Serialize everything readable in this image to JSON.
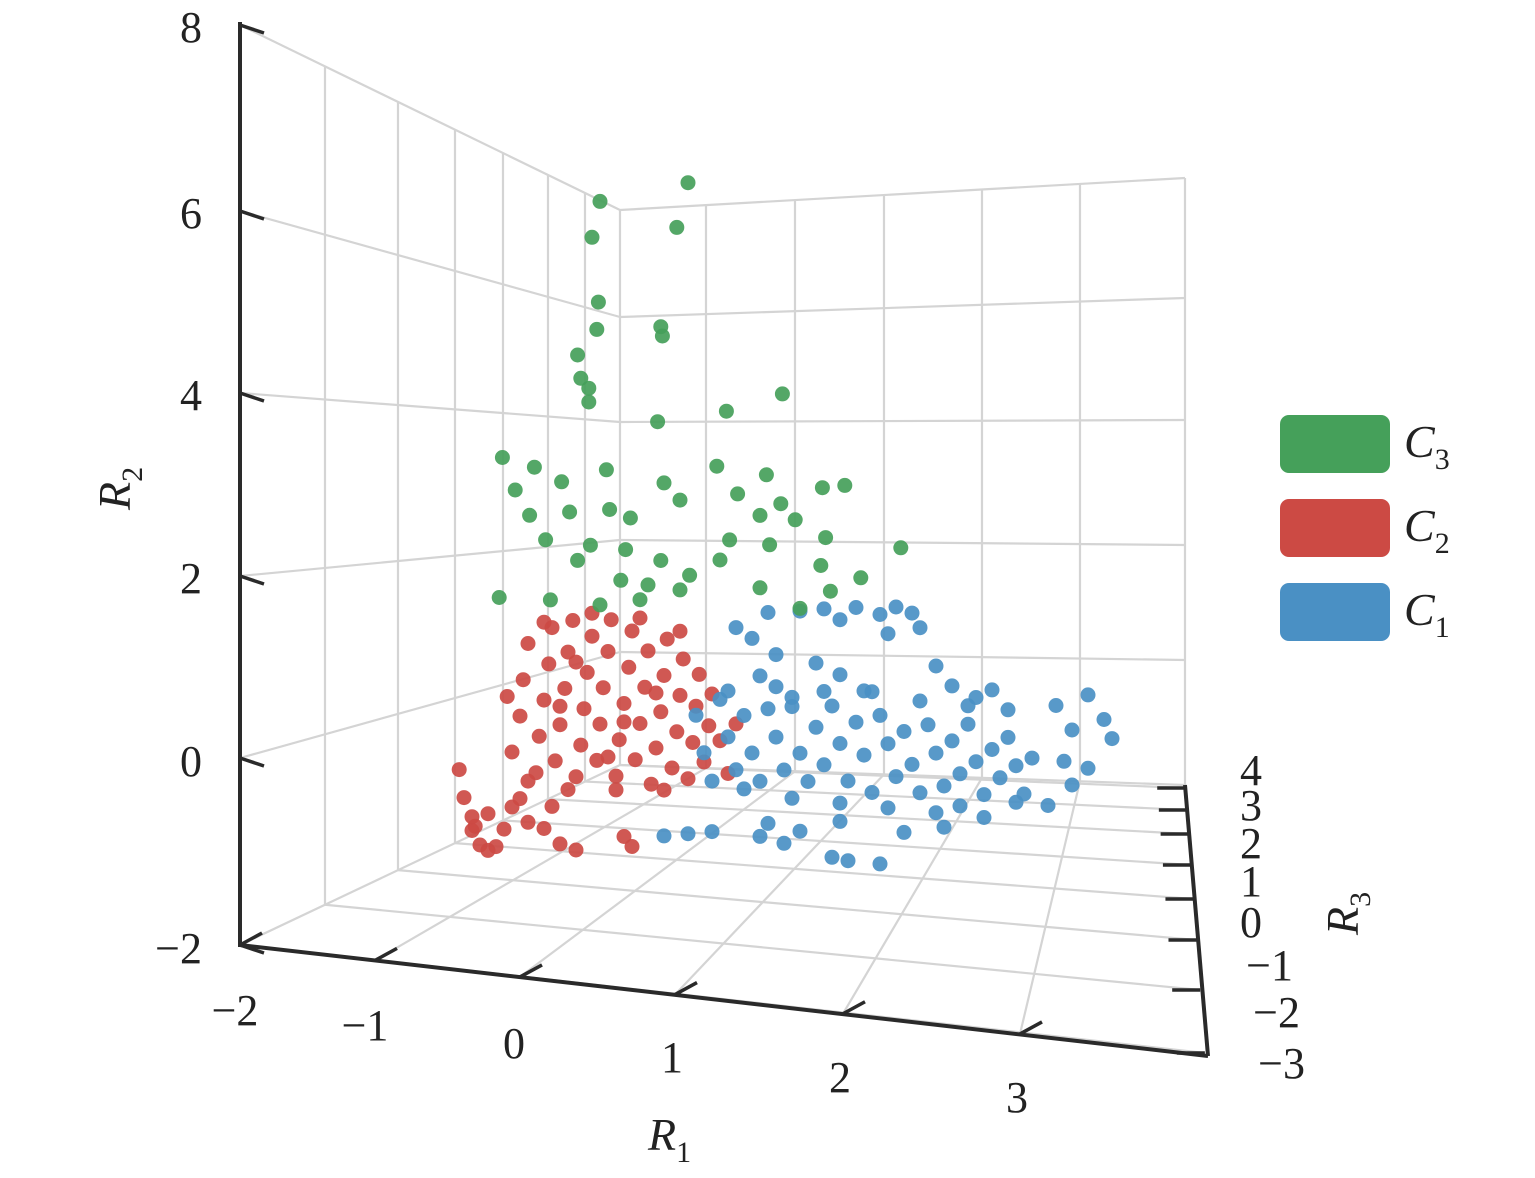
{
  "chart_data": {
    "type": "scatter",
    "projection": "3d",
    "xlabel": {
      "main": "R",
      "sub": "1"
    },
    "ylabel": {
      "main": "R",
      "sub": "2"
    },
    "zlabel": {
      "main": "R",
      "sub": "3"
    },
    "xticks": [
      "−2",
      "−1",
      "0",
      "1",
      "2",
      "3"
    ],
    "yticks": [
      "8",
      "6",
      "4",
      "2",
      "0",
      "−2"
    ],
    "zticks": [
      "4",
      "3",
      "2",
      "1",
      "0",
      "−1",
      "−2",
      "−3"
    ],
    "xlim": [
      -2,
      4
    ],
    "ylim": [
      -2,
      8
    ],
    "zlim": [
      -3,
      4
    ],
    "grid": true,
    "legend_position": "right",
    "point_dims": [
      "R1",
      "R2"
    ],
    "series": [
      {
        "name": "C",
        "sub": "2",
        "color": "#cc4a44",
        "points": [
          [
            -0.05,
            0.5
          ],
          [
            0.0,
            0.9
          ],
          [
            0.02,
            1.3
          ],
          [
            0.05,
            1.7
          ],
          [
            0.1,
            0.3
          ],
          [
            0.12,
            0.7
          ],
          [
            0.15,
            1.1
          ],
          [
            0.18,
            1.5
          ],
          [
            0.2,
            1.9
          ],
          [
            0.22,
            0.45
          ],
          [
            0.25,
            0.85
          ],
          [
            0.28,
            1.25
          ],
          [
            0.3,
            1.65
          ],
          [
            0.33,
            2.0
          ],
          [
            0.35,
            0.3
          ],
          [
            0.38,
            0.65
          ],
          [
            0.4,
            1.05
          ],
          [
            0.42,
            1.45
          ],
          [
            0.45,
            1.85
          ],
          [
            0.48,
            0.5
          ],
          [
            0.5,
            0.9
          ],
          [
            0.52,
            1.3
          ],
          [
            0.55,
            1.7
          ],
          [
            0.57,
            2.05
          ],
          [
            0.6,
            0.35
          ],
          [
            0.62,
            0.75
          ],
          [
            0.65,
            1.15
          ],
          [
            0.68,
            1.55
          ],
          [
            0.7,
            1.95
          ],
          [
            0.72,
            0.55
          ],
          [
            0.75,
            0.95
          ],
          [
            0.78,
            1.35
          ],
          [
            0.8,
            1.75
          ],
          [
            0.82,
            0.3
          ],
          [
            0.85,
            0.7
          ],
          [
            0.88,
            1.1
          ],
          [
            0.9,
            1.5
          ],
          [
            0.92,
            1.9
          ],
          [
            0.95,
            0.5
          ],
          [
            0.98,
            0.9
          ],
          [
            1.0,
            1.3
          ],
          [
            1.02,
            1.7
          ],
          [
            1.05,
            0.4
          ],
          [
            1.08,
            0.8
          ],
          [
            1.1,
            1.2
          ],
          [
            1.12,
            1.55
          ],
          [
            1.15,
            0.6
          ],
          [
            1.18,
            1.0
          ],
          [
            1.2,
            1.35
          ],
          [
            0.05,
            0.2
          ],
          [
            0.3,
            0.15
          ],
          [
            0.6,
            0.2
          ],
          [
            0.9,
            0.25
          ],
          [
            -0.08,
            1.1
          ],
          [
            0.15,
            1.95
          ],
          [
            0.45,
            2.1
          ],
          [
            0.75,
            2.1
          ],
          [
            1.0,
            2.0
          ],
          [
            0.25,
            1.05
          ],
          [
            0.55,
            0.55
          ],
          [
            0.85,
            1.3
          ],
          [
            0.35,
            1.55
          ],
          [
            0.65,
            0.95
          ],
          [
            1.25,
            0.85
          ],
          [
            1.35,
            1.05
          ],
          [
            1.3,
            0.5
          ],
          [
            -0.38,
            0.25
          ],
          [
            -0.35,
            -0.05
          ],
          [
            -0.3,
            -0.25
          ],
          [
            -0.25,
            -0.55
          ],
          [
            -0.2,
            -0.6
          ],
          [
            -0.15,
            -0.55
          ],
          [
            -0.3,
            -0.4
          ],
          [
            -0.2,
            -0.2
          ],
          [
            -0.1,
            -0.35
          ],
          [
            -0.05,
            -0.1
          ],
          [
            0.05,
            -0.25
          ],
          [
            0.15,
            -0.3
          ],
          [
            0.25,
            -0.45
          ],
          [
            0.35,
            -0.5
          ],
          [
            0.0,
            0.0
          ],
          [
            0.2,
            -0.05
          ],
          [
            0.65,
            -0.3
          ],
          [
            0.7,
            -0.4
          ],
          [
            -0.28,
            -0.35
          ]
        ]
      },
      {
        "name": "C",
        "sub": "1",
        "color": "#4a90c4",
        "points": [
          [
            1.35,
            2.1
          ],
          [
            1.45,
            2.0
          ],
          [
            1.55,
            2.3
          ],
          [
            1.6,
            1.85
          ],
          [
            1.75,
            2.35
          ],
          [
            1.9,
            2.4
          ],
          [
            2.0,
            2.3
          ],
          [
            2.1,
            2.45
          ],
          [
            2.25,
            2.4
          ],
          [
            2.35,
            2.5
          ],
          [
            2.45,
            2.45
          ],
          [
            2.5,
            2.3
          ],
          [
            2.3,
            2.2
          ],
          [
            1.85,
            1.8
          ],
          [
            2.0,
            1.7
          ],
          [
            2.15,
            1.55
          ],
          [
            2.6,
            1.9
          ],
          [
            2.7,
            1.7
          ],
          [
            2.85,
            1.6
          ],
          [
            2.95,
            1.7
          ],
          [
            3.05,
            1.5
          ],
          [
            1.5,
            1.6
          ],
          [
            1.7,
            1.3
          ],
          [
            1.1,
            1.1
          ],
          [
            1.15,
            0.7
          ],
          [
            1.2,
            0.4
          ],
          [
            1.25,
            1.3
          ],
          [
            1.3,
            0.9
          ],
          [
            1.35,
            0.55
          ],
          [
            1.4,
            1.15
          ],
          [
            1.45,
            0.75
          ],
          [
            1.5,
            0.45
          ],
          [
            1.55,
            1.25
          ],
          [
            1.6,
            0.95
          ],
          [
            1.65,
            0.6
          ],
          [
            1.7,
            1.4
          ],
          [
            1.75,
            0.8
          ],
          [
            1.8,
            0.5
          ],
          [
            1.85,
            1.1
          ],
          [
            1.9,
            0.7
          ],
          [
            1.95,
            1.35
          ],
          [
            2.0,
            0.95
          ],
          [
            2.05,
            0.55
          ],
          [
            2.1,
            1.2
          ],
          [
            2.15,
            0.85
          ],
          [
            2.2,
            0.45
          ],
          [
            2.25,
            1.3
          ],
          [
            2.3,
            1.0
          ],
          [
            2.35,
            0.65
          ],
          [
            2.4,
            1.15
          ],
          [
            2.45,
            0.8
          ],
          [
            2.5,
            0.5
          ],
          [
            2.55,
            1.25
          ],
          [
            2.6,
            0.95
          ],
          [
            2.65,
            0.6
          ],
          [
            2.7,
            1.1
          ],
          [
            2.75,
            0.75
          ],
          [
            2.8,
            1.3
          ],
          [
            2.85,
            0.9
          ],
          [
            2.9,
            0.55
          ],
          [
            2.95,
            1.05
          ],
          [
            3.0,
            0.75
          ],
          [
            3.05,
            1.2
          ],
          [
            3.1,
            0.9
          ],
          [
            3.15,
            0.6
          ],
          [
            3.2,
            1.0
          ],
          [
            1.3,
            1.4
          ],
          [
            1.6,
            1.5
          ],
          [
            1.9,
            1.5
          ],
          [
            2.2,
            1.55
          ],
          [
            2.5,
            1.5
          ],
          [
            2.8,
            1.5
          ],
          [
            1.4,
            0.35
          ],
          [
            1.7,
            0.3
          ],
          [
            2.0,
            0.3
          ],
          [
            2.3,
            0.3
          ],
          [
            2.6,
            0.3
          ],
          [
            2.9,
            0.3
          ],
          [
            3.1,
            0.5
          ],
          [
            2.75,
            0.4
          ],
          [
            1.55,
            0.0
          ],
          [
            1.75,
            -0.05
          ],
          [
            2.0,
            0.1
          ],
          [
            2.4,
            0.05
          ],
          [
            2.65,
            0.15
          ],
          [
            3.35,
            1.6
          ],
          [
            3.45,
            1.35
          ],
          [
            3.55,
            1.75
          ],
          [
            3.65,
            1.5
          ],
          [
            3.7,
            1.3
          ],
          [
            3.4,
            1.0
          ],
          [
            3.55,
            0.95
          ],
          [
            3.3,
            0.5
          ],
          [
            3.45,
            0.75
          ],
          [
            0.9,
            -0.25
          ],
          [
            1.05,
            -0.2
          ],
          [
            1.2,
            -0.15
          ],
          [
            1.5,
            -0.15
          ],
          [
            1.65,
            -0.2
          ],
          [
            1.95,
            -0.3
          ],
          [
            2.05,
            -0.32
          ],
          [
            2.25,
            -0.32
          ]
        ]
      },
      {
        "name": "C",
        "sub": "3",
        "color": "#45a05a",
        "points": [
          [
            0.5,
            6.6
          ],
          [
            1.05,
            6.9
          ],
          [
            0.45,
            6.2
          ],
          [
            0.98,
            6.4
          ],
          [
            0.49,
            5.5
          ],
          [
            0.48,
            5.2
          ],
          [
            0.88,
            5.3
          ],
          [
            0.89,
            5.2
          ],
          [
            0.36,
            4.9
          ],
          [
            0.38,
            4.65
          ],
          [
            0.43,
            4.55
          ],
          [
            0.43,
            4.4
          ],
          [
            0.86,
            4.26
          ],
          [
            1.29,
            4.45
          ],
          [
            1.64,
            4.7
          ],
          [
            -0.11,
            3.7
          ],
          [
            0.09,
            3.63
          ],
          [
            0.54,
            3.68
          ],
          [
            1.23,
            3.84
          ],
          [
            1.54,
            3.8
          ],
          [
            -0.03,
            3.36
          ],
          [
            0.26,
            3.5
          ],
          [
            0.9,
            3.6
          ],
          [
            1.36,
            3.56
          ],
          [
            1.89,
            3.72
          ],
          [
            2.03,
            3.77
          ],
          [
            1.0,
            3.43
          ],
          [
            1.63,
            3.5
          ],
          [
            1.5,
            3.35
          ],
          [
            1.72,
            3.34
          ],
          [
            0.06,
            3.1
          ],
          [
            0.31,
            3.18
          ],
          [
            0.56,
            3.25
          ],
          [
            0.69,
            3.18
          ],
          [
            0.16,
            2.85
          ],
          [
            0.44,
            2.84
          ],
          [
            0.66,
            2.83
          ],
          [
            0.88,
            2.75
          ],
          [
            1.31,
            3.05
          ],
          [
            1.56,
            3.04
          ],
          [
            1.91,
            3.18
          ],
          [
            2.38,
            3.15
          ],
          [
            0.36,
            2.66
          ],
          [
            0.63,
            2.49
          ],
          [
            0.8,
            2.47
          ],
          [
            1.06,
            2.62
          ],
          [
            1.25,
            2.82
          ],
          [
            1.88,
            2.87
          ],
          [
            2.13,
            2.78
          ],
          [
            -0.13,
            2.17
          ],
          [
            0.19,
            2.2
          ],
          [
            0.5,
            2.2
          ],
          [
            0.75,
            2.3
          ],
          [
            1.0,
            2.45
          ],
          [
            1.5,
            2.56
          ],
          [
            1.75,
            2.38
          ],
          [
            1.94,
            2.6
          ]
        ]
      }
    ],
    "legend": [
      {
        "name": "C",
        "sub": "3",
        "color": "#45a05a"
      },
      {
        "name": "C",
        "sub": "2",
        "color": "#cc4a44"
      },
      {
        "name": "C",
        "sub": "1",
        "color": "#4a90c4"
      }
    ]
  }
}
